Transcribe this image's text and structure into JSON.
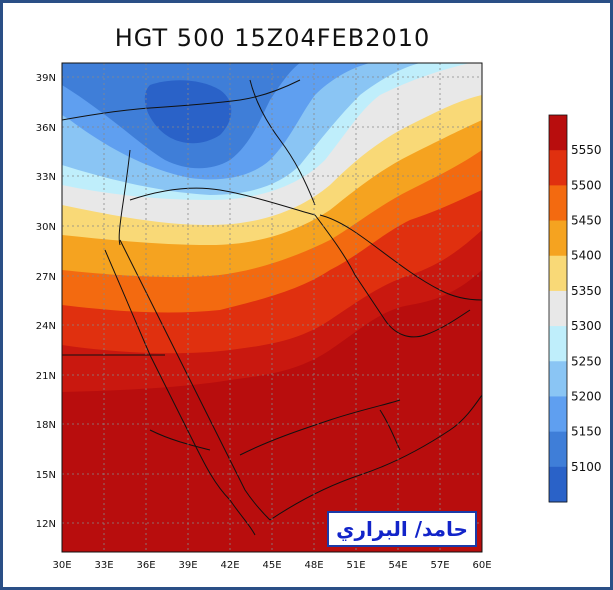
{
  "title": "HGT 500  15Z04FEB2010",
  "lat_labels": [
    "39N",
    "36N",
    "33N",
    "30N",
    "27N",
    "24N",
    "21N",
    "18N",
    "15N",
    "12N"
  ],
  "lon_labels": [
    "30E",
    "33E",
    "36E",
    "39E",
    "42E",
    "45E",
    "48E",
    "51E",
    "54E",
    "57E",
    "60E"
  ],
  "colorbar": {
    "levels": [
      "5550",
      "5500",
      "5450",
      "5400",
      "5350",
      "5300",
      "5250",
      "5200",
      "5150",
      "5100"
    ],
    "colors": [
      "#b80d0d",
      "#e0300f",
      "#f36a10",
      "#f5a320",
      "#f9d977",
      "#e8e8e8",
      "#bfeefb",
      "#8ac5f4",
      "#5f9ff0",
      "#3f7ed8",
      "#2a62c8"
    ]
  },
  "signature": "حامد/ البراري"
}
